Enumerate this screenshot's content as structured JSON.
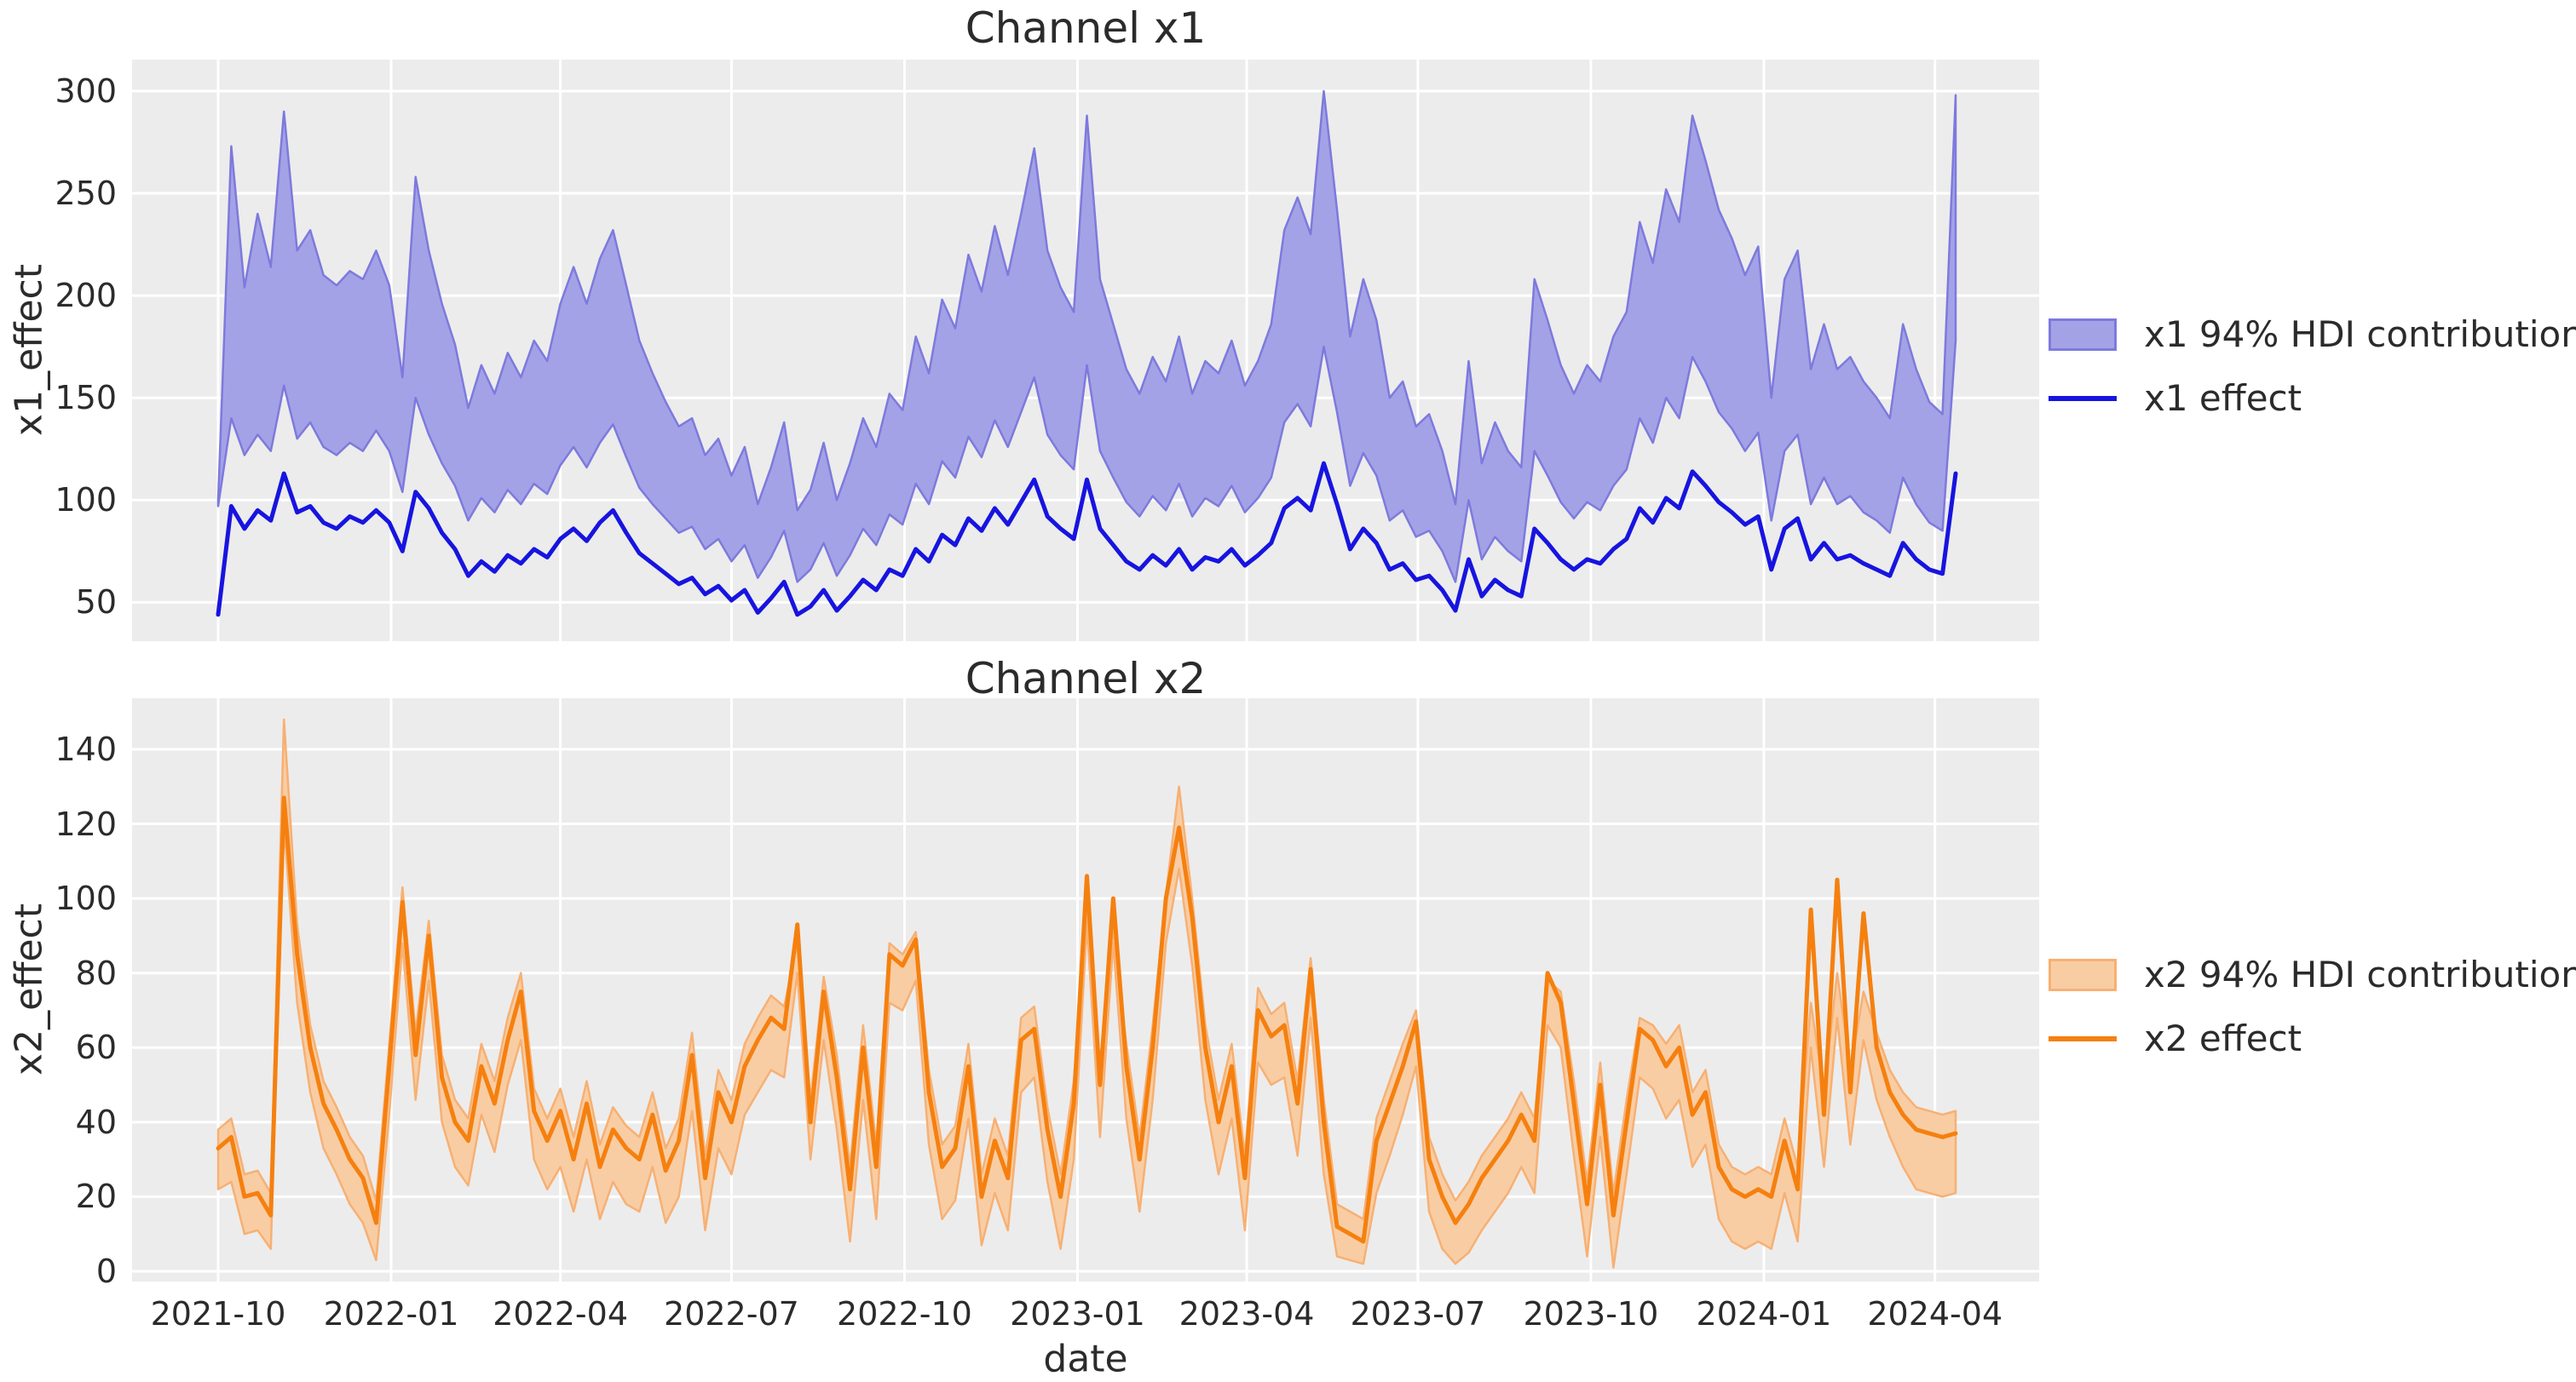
{
  "figure": {
    "background": "#ffffff",
    "plot_background": "#ececec",
    "grid_color": "#ffffff",
    "text_color": "#2b2b2b"
  },
  "x_axis": {
    "label": "date",
    "start_date": "2021-10-01",
    "step_days": 7,
    "n_points": 133,
    "tick_labels": [
      "2021-10",
      "2022-01",
      "2022-04",
      "2022-07",
      "2022-10",
      "2023-01",
      "2023-04",
      "2023-07",
      "2023-10",
      "2024-01",
      "2024-04"
    ],
    "tick_week_offsets": [
      0,
      13.143,
      26.0,
      39.0,
      52.143,
      65.286,
      78.143,
      91.143,
      104.286,
      117.429,
      130.429
    ]
  },
  "chart_data": [
    {
      "type": "area",
      "title": "Channel x1",
      "ylabel": "x1_effect",
      "xlabel": "",
      "ylim": [
        31,
        315.4
      ],
      "yticks": [
        50,
        100,
        150,
        200,
        250,
        300
      ],
      "grid": true,
      "legend_position": "right",
      "band": {
        "name": "x1 94% HDI contribution",
        "fill": "#a4a2e6",
        "edge": "#7d7add",
        "upper": [
          100,
          273,
          204,
          240,
          214,
          290,
          222,
          232,
          210,
          205,
          212,
          208,
          222,
          205,
          160,
          258,
          222,
          196,
          176,
          145,
          166,
          152,
          172,
          160,
          178,
          168,
          196,
          214,
          196,
          218,
          232,
          205,
          178,
          162,
          148,
          136,
          140,
          122,
          130,
          112,
          126,
          98,
          116,
          138,
          95,
          105,
          128,
          100,
          118,
          140,
          126,
          152,
          144,
          180,
          162,
          198,
          184,
          220,
          202,
          234,
          210,
          240,
          272,
          222,
          204,
          192,
          288,
          208,
          186,
          164,
          152,
          170,
          158,
          180,
          152,
          168,
          162,
          178,
          156,
          168,
          186,
          232,
          248,
          230,
          300,
          242,
          180,
          208,
          188,
          150,
          158,
          136,
          142,
          124,
          98,
          168,
          118,
          138,
          124,
          116,
          208,
          188,
          166,
          152,
          166,
          158,
          180,
          192,
          236,
          216,
          252,
          236,
          288,
          266,
          242,
          228,
          210,
          224,
          150,
          208,
          222,
          164,
          186,
          164,
          170,
          158,
          150,
          140,
          186,
          164,
          148,
          142,
          298
        ],
        "lower": [
          97,
          140,
          122,
          132,
          124,
          156,
          130,
          138,
          126,
          122,
          128,
          124,
          134,
          124,
          104,
          150,
          132,
          118,
          107,
          90,
          101,
          94,
          105,
          98,
          108,
          103,
          117,
          126,
          116,
          128,
          137,
          121,
          106,
          98,
          91,
          84,
          87,
          76,
          81,
          70,
          78,
          62,
          72,
          85,
          60,
          66,
          79,
          63,
          73,
          86,
          78,
          93,
          88,
          108,
          98,
          119,
          111,
          131,
          121,
          139,
          126,
          143,
          160,
          132,
          122,
          115,
          166,
          124,
          111,
          99,
          92,
          102,
          95,
          108,
          92,
          101,
          97,
          107,
          94,
          101,
          111,
          138,
          147,
          136,
          175,
          143,
          107,
          123,
          112,
          90,
          95,
          82,
          85,
          75,
          60,
          100,
          71,
          82,
          75,
          70,
          124,
          112,
          99,
          91,
          99,
          95,
          107,
          115,
          140,
          128,
          150,
          140,
          170,
          158,
          143,
          135,
          124,
          133,
          90,
          124,
          132,
          98,
          111,
          98,
          102,
          94,
          90,
          84,
          111,
          98,
          89,
          85,
          178
        ]
      },
      "line": {
        "name": "x1 effect",
        "color": "#1714e0",
        "values": [
          44,
          97,
          86,
          95,
          90,
          113,
          94,
          97,
          89,
          86,
          92,
          89,
          95,
          89,
          75,
          104,
          96,
          84,
          76,
          63,
          70,
          65,
          73,
          69,
          76,
          72,
          81,
          86,
          80,
          89,
          95,
          84,
          74,
          69,
          64,
          59,
          62,
          54,
          58,
          51,
          56,
          45,
          52,
          60,
          44,
          48,
          56,
          46,
          53,
          61,
          56,
          66,
          63,
          76,
          70,
          83,
          78,
          91,
          85,
          96,
          88,
          99,
          110,
          92,
          86,
          81,
          110,
          86,
          78,
          70,
          66,
          73,
          68,
          76,
          66,
          72,
          70,
          76,
          68,
          73,
          79,
          96,
          101,
          95,
          118,
          98,
          76,
          86,
          79,
          66,
          69,
          61,
          63,
          56,
          46,
          71,
          53,
          61,
          56,
          53,
          86,
          79,
          71,
          66,
          71,
          69,
          76,
          81,
          96,
          89,
          101,
          96,
          114,
          107,
          99,
          94,
          88,
          92,
          66,
          86,
          91,
          71,
          79,
          71,
          73,
          69,
          66,
          63,
          79,
          71,
          66,
          64,
          113
        ]
      }
    },
    {
      "type": "area",
      "title": "Channel x2",
      "ylabel": "x2_effect",
      "xlabel": "date",
      "ylim": [
        -2.74,
        153.7
      ],
      "yticks": [
        0,
        20,
        40,
        60,
        80,
        100,
        120,
        140
      ],
      "grid": true,
      "legend_position": "right",
      "band": {
        "name": "x2 94% HDI contribution",
        "fill": "#f8cda4",
        "edge": "#f7b073",
        "upper": [
          38,
          41,
          26,
          27,
          21,
          148,
          93,
          66,
          51,
          44,
          36,
          31,
          19,
          61,
          103,
          64,
          94,
          58,
          46,
          41,
          61,
          51,
          68,
          80,
          49,
          41,
          49,
          36,
          51,
          34,
          44,
          39,
          36,
          48,
          33,
          41,
          64,
          31,
          54,
          46,
          61,
          68,
          74,
          71,
          88,
          46,
          79,
          58,
          28,
          66,
          34,
          88,
          85,
          91,
          54,
          34,
          39,
          61,
          26,
          41,
          31,
          68,
          71,
          44,
          26,
          51,
          96,
          56,
          92,
          61,
          36,
          66,
          101,
          130,
          100,
          66,
          46,
          61,
          31,
          76,
          69,
          72,
          51,
          84,
          46,
          18,
          16,
          14,
          41,
          51,
          61,
          70,
          36,
          26,
          19,
          24,
          31,
          36,
          41,
          48,
          41,
          78,
          75,
          51,
          24,
          56,
          21,
          46,
          68,
          66,
          61,
          66,
          48,
          54,
          34,
          28,
          26,
          28,
          26,
          41,
          28,
          72,
          48,
          80,
          54,
          75,
          64,
          54,
          48,
          44,
          43,
          42,
          43
        ],
        "lower": [
          22,
          24,
          10,
          11,
          6,
          120,
          72,
          48,
          33,
          26,
          18,
          13,
          3,
          42,
          88,
          46,
          78,
          40,
          28,
          23,
          42,
          32,
          50,
          62,
          30,
          22,
          28,
          16,
          30,
          14,
          24,
          18,
          16,
          28,
          13,
          20,
          43,
          11,
          33,
          26,
          42,
          48,
          54,
          52,
          80,
          30,
          62,
          38,
          8,
          46,
          14,
          72,
          70,
          78,
          34,
          14,
          19,
          41,
          7,
          21,
          11,
          48,
          52,
          24,
          6,
          30,
          93,
          36,
          88,
          41,
          16,
          46,
          88,
          108,
          82,
          46,
          26,
          41,
          11,
          56,
          50,
          52,
          31,
          68,
          26,
          4,
          3,
          2,
          21,
          31,
          42,
          55,
          16,
          6,
          2,
          5,
          11,
          16,
          21,
          28,
          21,
          66,
          60,
          31,
          4,
          36,
          1,
          26,
          52,
          49,
          41,
          46,
          28,
          34,
          14,
          8,
          6,
          8,
          6,
          21,
          8,
          60,
          28,
          68,
          34,
          62,
          46,
          36,
          28,
          22,
          21,
          20,
          21
        ]
      },
      "line": {
        "name": "x2 effect",
        "color": "#f5800f",
        "values": [
          33,
          36,
          20,
          21,
          15,
          127,
          85,
          60,
          45,
          38,
          30,
          25,
          13,
          55,
          99,
          58,
          90,
          52,
          40,
          35,
          55,
          45,
          62,
          75,
          43,
          35,
          43,
          30,
          45,
          28,
          38,
          33,
          30,
          42,
          27,
          35,
          58,
          25,
          48,
          40,
          55,
          62,
          68,
          65,
          93,
          40,
          75,
          52,
          22,
          60,
          28,
          85,
          82,
          89,
          48,
          28,
          33,
          55,
          20,
          35,
          25,
          62,
          65,
          38,
          20,
          45,
          106,
          50,
          100,
          55,
          30,
          60,
          100,
          119,
          95,
          60,
          40,
          55,
          25,
          70,
          63,
          66,
          45,
          81,
          40,
          12,
          10,
          8,
          35,
          45,
          55,
          67,
          30,
          20,
          13,
          18,
          25,
          30,
          35,
          42,
          35,
          80,
          72,
          45,
          18,
          50,
          15,
          40,
          65,
          62,
          55,
          60,
          42,
          48,
          28,
          22,
          20,
          22,
          20,
          35,
          22,
          97,
          42,
          105,
          48,
          96,
          60,
          48,
          42,
          38,
          37,
          36,
          37
        ]
      }
    }
  ]
}
